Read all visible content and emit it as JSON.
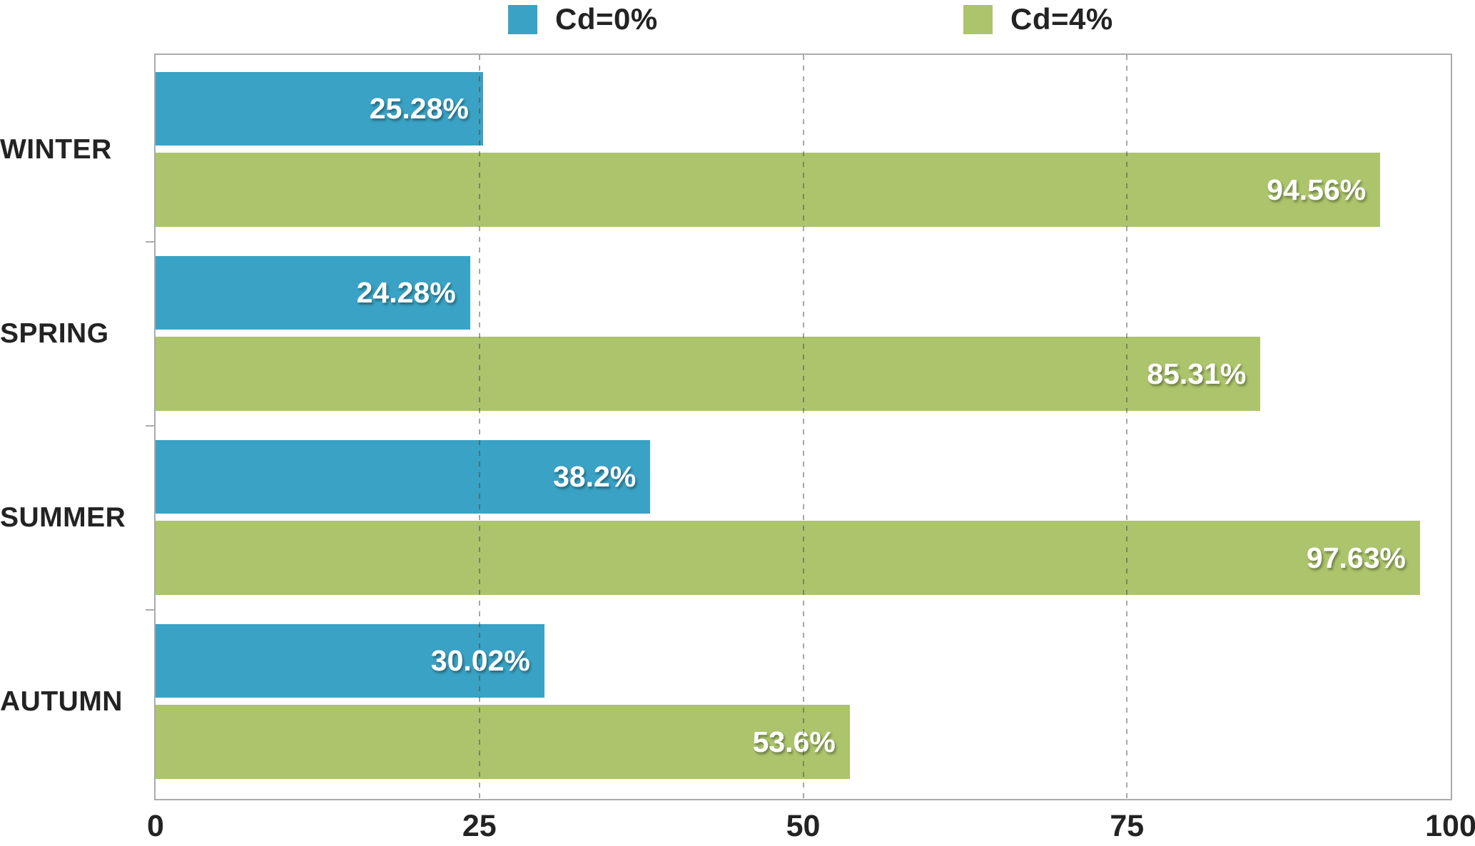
{
  "legend": {
    "items": [
      {
        "label": "Cd=0%",
        "color": "#3AA2C4"
      },
      {
        "label": "Cd=4%",
        "color": "#ACC46B"
      }
    ]
  },
  "chart_data": {
    "type": "bar",
    "orientation": "horizontal",
    "title": "",
    "xlabel": "",
    "ylabel": "",
    "categories": [
      "WINTER",
      "SPRING",
      "SUMMER",
      "AUTUMN"
    ],
    "series": [
      {
        "name": "Cd=0%",
        "color": "#3AA2C4",
        "values": [
          25.28,
          24.28,
          38.2,
          30.02
        ],
        "labels": [
          "25.28%",
          "24.28%",
          "38.2%",
          "30.02%"
        ]
      },
      {
        "name": "Cd=4%",
        "color": "#ACC46B",
        "values": [
          94.56,
          85.31,
          97.63,
          53.6
        ],
        "labels": [
          "94.56%",
          "85.31%",
          "97.63%",
          "53.6%"
        ]
      }
    ],
    "xlim": [
      0,
      100
    ],
    "x_ticks": [
      "0",
      "25",
      "50",
      "75",
      "100"
    ],
    "x_tick_values": [
      0,
      25,
      50,
      75,
      100
    ],
    "gridlines": {
      "style": "dashed",
      "at": [
        25,
        50,
        75
      ]
    },
    "legend_position": "top",
    "grid": true
  },
  "colors": {
    "plot_border": "#ABABAB",
    "grid": "#3C3C3C",
    "axis_text": "#232323",
    "value_text": "#FFFFFF"
  }
}
